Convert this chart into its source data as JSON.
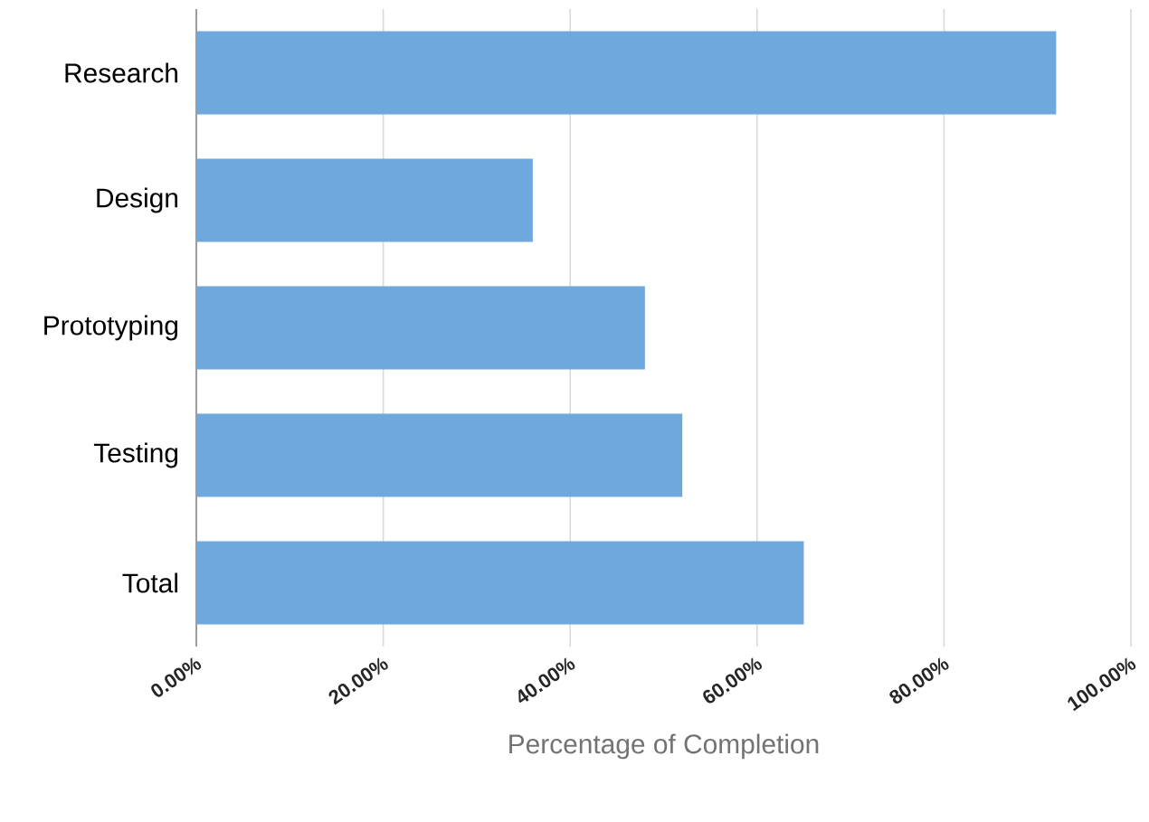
{
  "chart_data": {
    "type": "bar",
    "orientation": "horizontal",
    "xlabel": "Percentage of Completion",
    "categories": [
      "Research",
      "Design",
      "Prototyping",
      "Testing",
      "Total"
    ],
    "values": [
      92,
      36,
      48,
      52,
      65
    ],
    "color": "#6fa8dc",
    "xlim": [
      0,
      100
    ],
    "xticks": [
      {
        "value": 0,
        "label": "0.00%"
      },
      {
        "value": 20,
        "label": "20.00%"
      },
      {
        "value": 40,
        "label": "40.00%"
      },
      {
        "value": 60,
        "label": "60.00%"
      },
      {
        "value": 80,
        "label": "80.00%"
      },
      {
        "value": 100,
        "label": "100.00%"
      }
    ],
    "grid": "x"
  }
}
